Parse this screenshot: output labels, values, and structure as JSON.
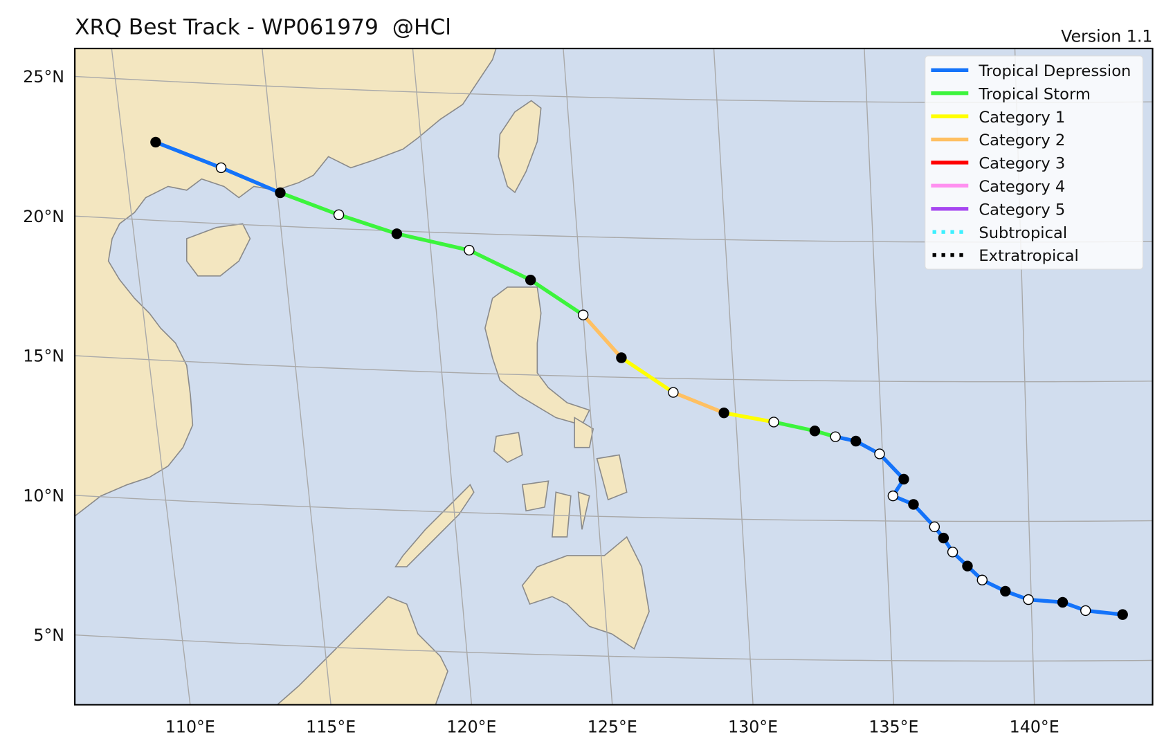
{
  "map": {
    "type": "track-map",
    "title": "XRQ Best Track - WP061979  @HCl",
    "version": "Version 1.1",
    "lonlim": [
      105.9,
      144.2
    ],
    "latlim": [
      2.5,
      26.0
    ],
    "lonticks": [
      {
        "value": 110,
        "label": "110°E"
      },
      {
        "value": 115,
        "label": "115°E"
      },
      {
        "value": 120,
        "label": "120°E"
      },
      {
        "value": 125,
        "label": "125°E"
      },
      {
        "value": 130,
        "label": "130°E"
      },
      {
        "value": 135,
        "label": "135°E"
      },
      {
        "value": 140,
        "label": "140°E"
      }
    ],
    "latticks": [
      {
        "value": 5,
        "label": "5°N"
      },
      {
        "value": 10,
        "label": "10°N"
      },
      {
        "value": 15,
        "label": "15°N"
      },
      {
        "value": 20,
        "label": "20°N"
      },
      {
        "value": 25,
        "label": "25°N"
      }
    ],
    "grid": true,
    "legend_position": "upper right",
    "legend": [
      {
        "name": "Tropical Depression",
        "color": "#1473fa",
        "style": "solid"
      },
      {
        "name": "Tropical Storm",
        "color": "#3cf43c",
        "style": "solid"
      },
      {
        "name": "Category 1",
        "color": "#ffff00",
        "style": "solid"
      },
      {
        "name": "Category 2",
        "color": "#ffc062",
        "style": "solid"
      },
      {
        "name": "Category 3",
        "color": "#ff0000",
        "style": "solid"
      },
      {
        "name": "Category 4",
        "color": "#ff90f0",
        "style": "solid"
      },
      {
        "name": "Category 5",
        "color": "#a646f0",
        "style": "solid"
      },
      {
        "name": "Subtropical",
        "color": "#3ef0ff",
        "style": "dotted"
      },
      {
        "name": "Extratropical",
        "color": "#000000",
        "style": "dotted"
      }
    ],
    "track": [
      {
        "lon": 111.1,
        "lat": 22.8,
        "category": "Tropical Depression"
      },
      {
        "lon": 113.2,
        "lat": 22.0,
        "category": "Tropical Depression"
      },
      {
        "lon": 115.1,
        "lat": 21.2,
        "category": "Tropical Storm"
      },
      {
        "lon": 117.0,
        "lat": 20.5,
        "category": "Tropical Storm"
      },
      {
        "lon": 118.9,
        "lat": 19.9,
        "category": "Tropical Storm"
      },
      {
        "lon": 121.3,
        "lat": 19.4,
        "category": "Tropical Storm"
      },
      {
        "lon": 123.3,
        "lat": 18.4,
        "category": "Tropical Storm"
      },
      {
        "lon": 125.0,
        "lat": 17.2,
        "category": "Category 2"
      },
      {
        "lon": 126.2,
        "lat": 15.7,
        "category": "Category 1"
      },
      {
        "lon": 127.9,
        "lat": 14.5,
        "category": "Category 2"
      },
      {
        "lon": 129.6,
        "lat": 13.8,
        "category": "Category 1"
      },
      {
        "lon": 131.3,
        "lat": 13.5,
        "category": "Tropical Storm"
      },
      {
        "lon": 132.7,
        "lat": 13.2,
        "category": "Tropical Storm"
      },
      {
        "lon": 133.4,
        "lat": 13.0,
        "category": "Tropical Depression"
      },
      {
        "lon": 134.1,
        "lat": 12.85,
        "category": "Tropical Depression"
      },
      {
        "lon": 134.9,
        "lat": 12.4,
        "category": "Tropical Depression"
      },
      {
        "lon": 135.7,
        "lat": 11.5,
        "category": "Tropical Depression"
      },
      {
        "lon": 135.3,
        "lat": 10.9,
        "category": "Tropical Depression"
      },
      {
        "lon": 136.0,
        "lat": 10.6,
        "category": "Tropical Depression"
      },
      {
        "lon": 136.7,
        "lat": 9.8,
        "category": "Tropical Depression"
      },
      {
        "lon": 137.0,
        "lat": 9.4,
        "category": "Tropical Depression"
      },
      {
        "lon": 137.3,
        "lat": 8.9,
        "category": "Tropical Depression"
      },
      {
        "lon": 137.8,
        "lat": 8.4,
        "category": "Tropical Depression"
      },
      {
        "lon": 138.3,
        "lat": 7.9,
        "category": "Tropical Depression"
      },
      {
        "lon": 139.1,
        "lat": 7.5,
        "category": "Tropical Depression"
      },
      {
        "lon": 139.9,
        "lat": 7.2,
        "category": "Tropical Depression"
      },
      {
        "lon": 141.1,
        "lat": 7.1,
        "category": "Tropical Depression"
      },
      {
        "lon": 141.9,
        "lat": 6.8,
        "category": "Tropical Depression"
      },
      {
        "lon": 143.2,
        "lat": 6.65,
        "category": "Tropical Depression"
      }
    ]
  }
}
